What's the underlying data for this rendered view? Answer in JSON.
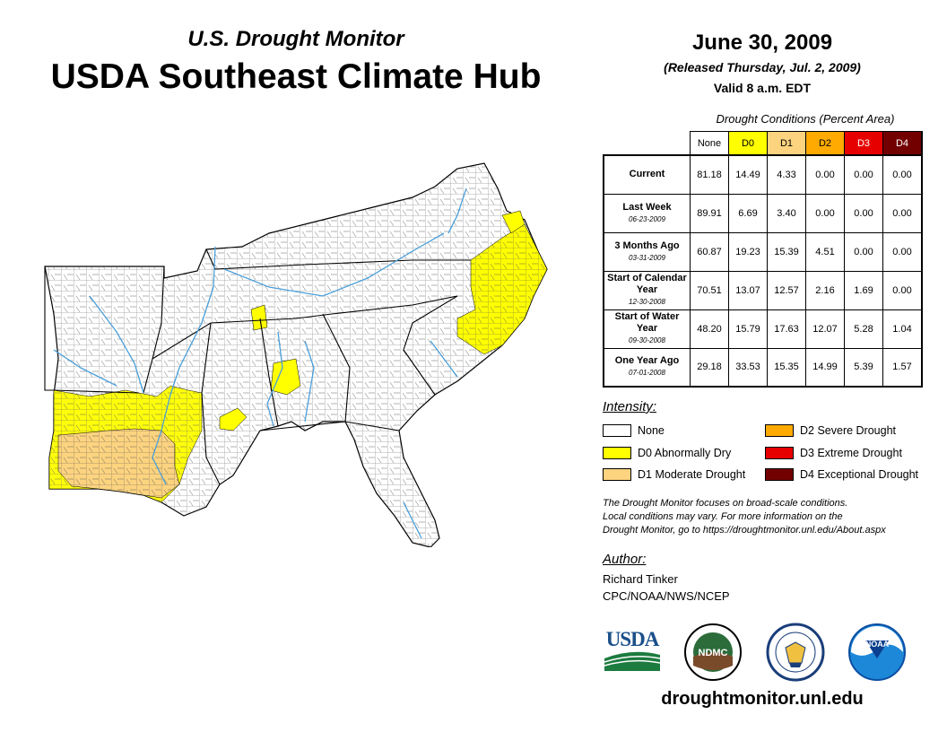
{
  "header": {
    "subtitle": "U.S. Drought Monitor",
    "title": "USDA Southeast Climate Hub",
    "date": "June 30, 2009",
    "released": "(Released Thursday, Jul. 2, 2009)",
    "valid": "Valid 8 a.m. EDT"
  },
  "table": {
    "caption": "Drought Conditions (Percent Area)",
    "columns": [
      "None",
      "D0",
      "D1",
      "D2",
      "D3",
      "D4"
    ],
    "rows": [
      {
        "label": "Current",
        "date": "",
        "values": [
          "81.18",
          "14.49",
          "4.33",
          "0.00",
          "0.00",
          "0.00"
        ]
      },
      {
        "label": "Last Week",
        "date": "06-23-2009",
        "values": [
          "89.91",
          "6.69",
          "3.40",
          "0.00",
          "0.00",
          "0.00"
        ]
      },
      {
        "label": "3 Months Ago",
        "date": "03-31-2009",
        "values": [
          "60.87",
          "19.23",
          "15.39",
          "4.51",
          "0.00",
          "0.00"
        ]
      },
      {
        "label": "Start of Calendar Year",
        "date": "12-30-2008",
        "values": [
          "70.51",
          "13.07",
          "12.57",
          "2.16",
          "1.69",
          "0.00"
        ]
      },
      {
        "label": "Start of Water Year",
        "date": "09-30-2008",
        "values": [
          "48.20",
          "15.79",
          "17.63",
          "12.07",
          "5.28",
          "1.04"
        ]
      },
      {
        "label": "One Year Ago",
        "date": "07-01-2008",
        "values": [
          "29.18",
          "33.53",
          "15.35",
          "14.99",
          "5.39",
          "1.57"
        ]
      }
    ]
  },
  "legend": {
    "title": "Intensity:",
    "items": [
      {
        "label": "None",
        "color": "#ffffff"
      },
      {
        "label": "D0 Abnormally Dry",
        "color": "#ffff00"
      },
      {
        "label": "D1 Moderate Drought",
        "color": "#fcd37f"
      },
      {
        "label": "D2 Severe Drought",
        "color": "#ffaa00"
      },
      {
        "label": "D3 Extreme Drought",
        "color": "#e60000"
      },
      {
        "label": "D4 Exceptional Drought",
        "color": "#730000"
      }
    ]
  },
  "note": {
    "line1": "The Drought Monitor focuses on broad-scale conditions.",
    "line2": "Local conditions may vary. For more information on the",
    "line3": "Drought Monitor, go to https://droughtmonitor.unl.edu/About.aspx"
  },
  "author": {
    "title": "Author:",
    "name": "Richard Tinker",
    "org": "CPC/NOAA/NWS/NCEP"
  },
  "logos": {
    "usda": "USDA",
    "ndmc": "NDMC",
    "noaa": "NOAA"
  },
  "website": "droughtmonitor.unl.edu",
  "map": {
    "region": "Southeast United States",
    "icons": [
      "usda-logo",
      "ndmc-logo",
      "commerce-seal-logo",
      "noaa-logo"
    ]
  }
}
